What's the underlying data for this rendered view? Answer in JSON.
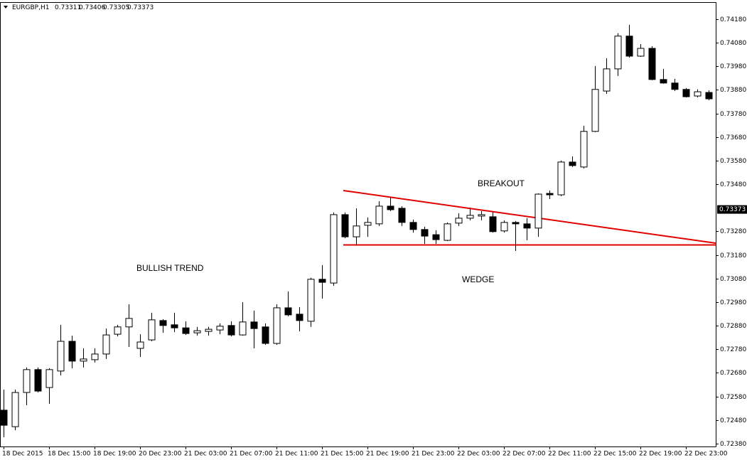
{
  "chart_data": {
    "type": "candlestick",
    "header": {
      "symbol": "EURGBP,H1",
      "open": 0.73311,
      "high": 0.73406,
      "low": 0.73305,
      "close": 0.73373
    },
    "current_price": 0.73373,
    "annotations": [
      "BULLISH TREND",
      "BREAKOUT",
      "WEDGE"
    ],
    "categories": [
      "18 Dec 2015",
      null,
      null,
      null,
      "18 Dec 15:00",
      null,
      null,
      null,
      "18 Dec 19:00",
      null,
      null,
      null,
      "20 Dec 23:00",
      null,
      null,
      null,
      "21 Dec 03:00",
      null,
      null,
      null,
      "21 Dec 07:00",
      null,
      null,
      null,
      "21 Dec 11:00",
      null,
      null,
      null,
      "21 Dec 15:00",
      null,
      null,
      null,
      "21 Dec 19:00",
      null,
      null,
      null,
      "21 Dec 23:00",
      null,
      null,
      null,
      "22 Dec 03:00",
      null,
      null,
      null,
      "22 Dec 07:00",
      null,
      null,
      null,
      "22 Dec 11:00",
      null,
      null,
      null,
      "22 Dec 15:00",
      null,
      null,
      null,
      "22 Dec 19:00",
      null,
      null,
      null,
      "22 Dec 23:00",
      null,
      null
    ],
    "open": [
      0.72522,
      0.72452,
      0.72597,
      0.72694,
      0.72618,
      0.72688,
      0.72814,
      0.7273,
      0.72736,
      0.7276,
      0.72844,
      0.72875,
      0.72784,
      0.7282,
      0.72902,
      0.72884,
      0.72871,
      0.7285,
      0.72856,
      0.72862,
      0.72881,
      0.72841,
      0.72896,
      0.72875,
      0.72805,
      0.72956,
      0.72929,
      0.72899,
      0.73077,
      0.73061,
      0.73351,
      0.73257,
      0.73306,
      0.73312,
      0.73387,
      0.73378,
      0.73318,
      0.73288,
      0.73266,
      0.73242,
      0.73315,
      0.73336,
      0.73345,
      0.73342,
      0.73282,
      0.73318,
      0.73312,
      0.73294,
      0.73441,
      0.73435,
      0.73574,
      0.73553,
      0.73704,
      0.73875,
      0.73969,
      0.74108,
      0.74023,
      0.74056,
      0.73924,
      0.73909,
      0.73882,
      0.73854,
      0.73869
    ],
    "high": [
      0.72609,
      0.72609,
      0.72703,
      0.72703,
      0.727,
      0.72884,
      0.72838,
      0.72784,
      0.72784,
      0.72868,
      0.72884,
      0.72971,
      0.72844,
      0.72935,
      0.72908,
      0.72935,
      0.72899,
      0.72875,
      0.72875,
      0.7289,
      0.72899,
      0.7298,
      0.72944,
      0.7289,
      0.72971,
      0.73025,
      0.72959,
      0.73083,
      0.73137,
      0.7336,
      0.7336,
      0.73378,
      0.73339,
      0.73408,
      0.73426,
      0.73387,
      0.7333,
      0.733,
      0.73285,
      0.73318,
      0.73357,
      0.73381,
      0.73366,
      0.73363,
      0.73327,
      0.73324,
      0.73336,
      0.73441,
      0.73453,
      0.7358,
      0.73598,
      0.73728,
      0.73981,
      0.74014,
      0.7412,
      0.74156,
      0.74074,
      0.74065,
      0.73969,
      0.73927,
      0.73888,
      0.73882,
      0.73878
    ],
    "low": [
      0.72407,
      0.72437,
      0.72543,
      0.72597,
      0.72549,
      0.72669,
      0.727,
      0.72703,
      0.72724,
      0.72739,
      0.72835,
      0.7279,
      0.72748,
      0.72814,
      0.7285,
      0.72853,
      0.72841,
      0.72838,
      0.72838,
      0.72844,
      0.72835,
      0.72838,
      0.72784,
      0.72799,
      0.72799,
      0.7292,
      0.72856,
      0.72875,
      0.72995,
      0.73049,
      0.73251,
      0.73221,
      0.73257,
      0.73303,
      0.73366,
      0.73303,
      0.73275,
      0.73227,
      0.73227,
      0.73239,
      0.73303,
      0.73327,
      0.73327,
      0.73275,
      0.73275,
      0.73197,
      0.73242,
      0.73257,
      0.73417,
      0.73429,
      0.73553,
      0.73547,
      0.73701,
      0.73863,
      0.73939,
      0.74017,
      0.7402,
      0.73921,
      0.73906,
      0.73875,
      0.73848,
      0.73848,
      0.73836
    ],
    "close": [
      0.72458,
      0.72597,
      0.72694,
      0.72603,
      0.72694,
      0.72814,
      0.7273,
      0.72739,
      0.7276,
      0.72841,
      0.72875,
      0.72911,
      0.72811,
      0.72905,
      0.72881,
      0.72871,
      0.72847,
      0.72859,
      0.72865,
      0.72878,
      0.72841,
      0.72896,
      0.72868,
      0.72805,
      0.72956,
      0.72926,
      0.72902,
      0.73077,
      0.73064,
      0.73351,
      0.73257,
      0.73303,
      0.73318,
      0.73387,
      0.73372,
      0.73318,
      0.73288,
      0.7326,
      0.73245,
      0.73312,
      0.73336,
      0.73348,
      0.73351,
      0.73279,
      0.73318,
      0.73312,
      0.73294,
      0.73438,
      0.73435,
      0.73574,
      0.73559,
      0.73704,
      0.73882,
      0.73969,
      0.74108,
      0.74023,
      0.74056,
      0.73924,
      0.73909,
      0.73882,
      0.73851,
      0.73872,
      0.73842
    ],
    "up_color": "#ffffff",
    "down_color": "#000000",
    "ylim": [
      0.72368,
      0.74252
    ],
    "yticks": [
      {
        "value": 0.7418,
        "label": "0.74180"
      },
      {
        "value": 0.7408,
        "label": "0.74080"
      },
      {
        "value": 0.7398,
        "label": "0.73980"
      },
      {
        "value": 0.7388,
        "label": "0.73880"
      },
      {
        "value": 0.7378,
        "label": "0.73780"
      },
      {
        "value": 0.7368,
        "label": "0.73680"
      },
      {
        "value": 0.7358,
        "label": "0.73580"
      },
      {
        "value": 0.7348,
        "label": "0.73480"
      },
      {
        "value": 0.7328,
        "label": "0.73280"
      },
      {
        "value": 0.7318,
        "label": "0.73180"
      },
      {
        "value": 0.7308,
        "label": "0.73080"
      },
      {
        "value": 0.7298,
        "label": "0.72980"
      },
      {
        "value": 0.7288,
        "label": "0.72880"
      },
      {
        "value": 0.7278,
        "label": "0.72780"
      },
      {
        "value": 0.7268,
        "label": "0.72680"
      },
      {
        "value": 0.7258,
        "label": "0.72580"
      },
      {
        "value": 0.7248,
        "label": "0.72480"
      },
      {
        "value": 0.7238,
        "label": "0.72380"
      }
    ],
    "grid": false
  }
}
